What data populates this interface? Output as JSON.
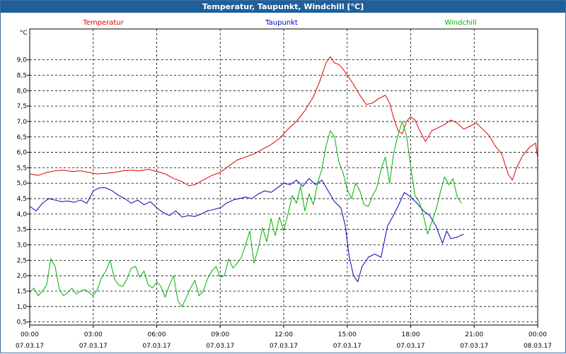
{
  "window": {
    "title": "Temperatur, Taupunkt, Windchill [°C]"
  },
  "chart_data": {
    "type": "line",
    "title": "Temperatur, Taupunkt, Windchill [°C]",
    "ylabel": "°C",
    "xlabel": "",
    "ylim": [
      0.4,
      10.0
    ],
    "xlim": [
      0,
      24
    ],
    "x_unit": "hours since 07.03.17 00:00",
    "y_ticks": [
      "0,5",
      "1,0",
      "1,5",
      "2,0",
      "2,5",
      "3,0",
      "3,5",
      "4,0",
      "4,5",
      "5,0",
      "5,5",
      "6,0",
      "6,5",
      "7,0",
      "7,5",
      "8,0",
      "8,5",
      "9,0"
    ],
    "x_ticks": [
      {
        "time": "00:00",
        "date": "07.03.17"
      },
      {
        "time": "03:00",
        "date": "07.03.17"
      },
      {
        "time": "06:00",
        "date": "07.03.17"
      },
      {
        "time": "09:00",
        "date": "07.03.17"
      },
      {
        "time": "12:00",
        "date": "07.03.17"
      },
      {
        "time": "15:00",
        "date": "07.03.17"
      },
      {
        "time": "18:00",
        "date": "07.03.17"
      },
      {
        "time": "21:00",
        "date": "07.03.17"
      },
      {
        "time": "00:00",
        "date": "08.03.17"
      }
    ],
    "grid": true,
    "series": [
      {
        "name": "Temperatur",
        "color": "#e00000",
        "points": [
          [
            0,
            5.3
          ],
          [
            0.4,
            5.25
          ],
          [
            0.8,
            5.35
          ],
          [
            1.2,
            5.4
          ],
          [
            1.6,
            5.42
          ],
          [
            2.0,
            5.38
          ],
          [
            2.4,
            5.4
          ],
          [
            2.8,
            5.35
          ],
          [
            3.2,
            5.3
          ],
          [
            3.6,
            5.32
          ],
          [
            4.0,
            5.35
          ],
          [
            4.4,
            5.4
          ],
          [
            4.8,
            5.42
          ],
          [
            5.2,
            5.4
          ],
          [
            5.6,
            5.45
          ],
          [
            6.0,
            5.38
          ],
          [
            6.4,
            5.3
          ],
          [
            6.8,
            5.15
          ],
          [
            7.2,
            5.05
          ],
          [
            7.5,
            4.92
          ],
          [
            7.8,
            4.95
          ],
          [
            8.2,
            5.1
          ],
          [
            8.6,
            5.25
          ],
          [
            9.0,
            5.35
          ],
          [
            9.4,
            5.55
          ],
          [
            9.8,
            5.75
          ],
          [
            10.2,
            5.85
          ],
          [
            10.6,
            5.95
          ],
          [
            11.0,
            6.1
          ],
          [
            11.4,
            6.25
          ],
          [
            11.8,
            6.45
          ],
          [
            12.2,
            6.75
          ],
          [
            12.6,
            7.0
          ],
          [
            13.0,
            7.35
          ],
          [
            13.4,
            7.8
          ],
          [
            13.7,
            8.3
          ],
          [
            14.0,
            8.9
          ],
          [
            14.2,
            9.1
          ],
          [
            14.4,
            8.9
          ],
          [
            14.6,
            8.85
          ],
          [
            14.8,
            8.7
          ],
          [
            15.0,
            8.5
          ],
          [
            15.3,
            8.2
          ],
          [
            15.6,
            7.85
          ],
          [
            15.9,
            7.55
          ],
          [
            16.2,
            7.6
          ],
          [
            16.5,
            7.75
          ],
          [
            16.8,
            7.85
          ],
          [
            17.0,
            7.6
          ],
          [
            17.2,
            7.1
          ],
          [
            17.4,
            6.7
          ],
          [
            17.6,
            6.6
          ],
          [
            17.8,
            7.0
          ],
          [
            18.0,
            7.15
          ],
          [
            18.2,
            7.05
          ],
          [
            18.5,
            6.6
          ],
          [
            18.7,
            6.35
          ],
          [
            19.0,
            6.7
          ],
          [
            19.3,
            6.8
          ],
          [
            19.6,
            6.9
          ],
          [
            19.9,
            7.05
          ],
          [
            20.2,
            6.95
          ],
          [
            20.5,
            6.75
          ],
          [
            20.8,
            6.85
          ],
          [
            21.1,
            6.95
          ],
          [
            21.4,
            6.75
          ],
          [
            21.7,
            6.55
          ],
          [
            22.0,
            6.2
          ],
          [
            22.3,
            5.95
          ],
          [
            22.6,
            5.3
          ],
          [
            22.8,
            5.1
          ],
          [
            23.0,
            5.5
          ],
          [
            23.3,
            5.9
          ],
          [
            23.6,
            6.15
          ],
          [
            23.9,
            6.3
          ],
          [
            24.0,
            5.8
          ]
        ]
      },
      {
        "name": "Taupunkt",
        "color": "#0000c0",
        "points": [
          [
            0,
            4.25
          ],
          [
            0.3,
            4.1
          ],
          [
            0.6,
            4.35
          ],
          [
            0.9,
            4.5
          ],
          [
            1.2,
            4.45
          ],
          [
            1.5,
            4.4
          ],
          [
            1.8,
            4.42
          ],
          [
            2.1,
            4.38
          ],
          [
            2.4,
            4.45
          ],
          [
            2.7,
            4.35
          ],
          [
            3.0,
            4.75
          ],
          [
            3.3,
            4.85
          ],
          [
            3.6,
            4.85
          ],
          [
            3.9,
            4.75
          ],
          [
            4.2,
            4.6
          ],
          [
            4.5,
            4.5
          ],
          [
            4.8,
            4.35
          ],
          [
            5.1,
            4.45
          ],
          [
            5.4,
            4.3
          ],
          [
            5.7,
            4.4
          ],
          [
            6.0,
            4.2
          ],
          [
            6.3,
            4.05
          ],
          [
            6.6,
            3.95
          ],
          [
            6.9,
            4.1
          ],
          [
            7.2,
            3.9
          ],
          [
            7.5,
            3.95
          ],
          [
            7.8,
            3.92
          ],
          [
            8.1,
            4.0
          ],
          [
            8.4,
            4.1
          ],
          [
            8.7,
            4.15
          ],
          [
            9.0,
            4.2
          ],
          [
            9.3,
            4.35
          ],
          [
            9.6,
            4.45
          ],
          [
            9.9,
            4.5
          ],
          [
            10.2,
            4.55
          ],
          [
            10.5,
            4.5
          ],
          [
            10.8,
            4.65
          ],
          [
            11.1,
            4.75
          ],
          [
            11.4,
            4.7
          ],
          [
            11.7,
            4.85
          ],
          [
            12.0,
            5.0
          ],
          [
            12.3,
            4.95
          ],
          [
            12.6,
            5.1
          ],
          [
            12.9,
            4.9
          ],
          [
            13.2,
            5.15
          ],
          [
            13.5,
            4.95
          ],
          [
            13.8,
            5.1
          ],
          [
            14.1,
            4.75
          ],
          [
            14.4,
            4.4
          ],
          [
            14.7,
            4.2
          ],
          [
            14.9,
            3.65
          ],
          [
            15.1,
            2.6
          ],
          [
            15.3,
            2.0
          ],
          [
            15.5,
            1.8
          ],
          [
            15.7,
            2.3
          ],
          [
            16.0,
            2.6
          ],
          [
            16.3,
            2.7
          ],
          [
            16.6,
            2.6
          ],
          [
            16.9,
            3.6
          ],
          [
            17.1,
            3.85
          ],
          [
            17.4,
            4.25
          ],
          [
            17.7,
            4.7
          ],
          [
            18.0,
            4.55
          ],
          [
            18.3,
            4.35
          ],
          [
            18.6,
            4.1
          ],
          [
            18.9,
            3.95
          ],
          [
            19.2,
            3.6
          ],
          [
            19.5,
            3.05
          ],
          [
            19.7,
            3.45
          ],
          [
            19.9,
            3.2
          ],
          [
            20.2,
            3.25
          ],
          [
            20.5,
            3.35
          ]
        ]
      },
      {
        "name": "Windchill",
        "color": "#00b000",
        "points": [
          [
            0,
            1.45
          ],
          [
            0.2,
            1.6
          ],
          [
            0.4,
            1.35
          ],
          [
            0.6,
            1.5
          ],
          [
            0.8,
            1.7
          ],
          [
            1.0,
            2.55
          ],
          [
            1.2,
            2.3
          ],
          [
            1.4,
            1.55
          ],
          [
            1.6,
            1.35
          ],
          [
            1.8,
            1.45
          ],
          [
            2.0,
            1.6
          ],
          [
            2.2,
            1.4
          ],
          [
            2.4,
            1.5
          ],
          [
            2.6,
            1.55
          ],
          [
            2.8,
            1.45
          ],
          [
            3.0,
            1.35
          ],
          [
            3.2,
            1.55
          ],
          [
            3.4,
            1.95
          ],
          [
            3.6,
            2.15
          ],
          [
            3.8,
            2.5
          ],
          [
            4.0,
            1.9
          ],
          [
            4.2,
            1.7
          ],
          [
            4.4,
            1.65
          ],
          [
            4.6,
            1.9
          ],
          [
            4.8,
            2.25
          ],
          [
            5.0,
            2.3
          ],
          [
            5.2,
            1.95
          ],
          [
            5.4,
            2.15
          ],
          [
            5.6,
            1.7
          ],
          [
            5.8,
            1.6
          ],
          [
            6.0,
            1.8
          ],
          [
            6.2,
            1.65
          ],
          [
            6.4,
            1.3
          ],
          [
            6.6,
            1.7
          ],
          [
            6.8,
            2.0
          ],
          [
            7.0,
            1.2
          ],
          [
            7.2,
            1.0
          ],
          [
            7.4,
            1.3
          ],
          [
            7.6,
            1.6
          ],
          [
            7.8,
            1.85
          ],
          [
            8.0,
            1.35
          ],
          [
            8.2,
            1.5
          ],
          [
            8.4,
            1.9
          ],
          [
            8.6,
            2.15
          ],
          [
            8.8,
            2.3
          ],
          [
            9.0,
            1.95
          ],
          [
            9.2,
            2.0
          ],
          [
            9.4,
            2.55
          ],
          [
            9.6,
            2.25
          ],
          [
            9.8,
            2.4
          ],
          [
            10.0,
            2.6
          ],
          [
            10.2,
            3.0
          ],
          [
            10.4,
            3.45
          ],
          [
            10.6,
            2.4
          ],
          [
            10.8,
            2.9
          ],
          [
            11.0,
            3.55
          ],
          [
            11.2,
            3.1
          ],
          [
            11.4,
            3.85
          ],
          [
            11.6,
            3.3
          ],
          [
            11.8,
            3.9
          ],
          [
            12.0,
            3.45
          ],
          [
            12.2,
            4.0
          ],
          [
            12.4,
            4.6
          ],
          [
            12.6,
            4.35
          ],
          [
            12.8,
            4.9
          ],
          [
            13.0,
            4.1
          ],
          [
            13.2,
            4.65
          ],
          [
            13.4,
            4.3
          ],
          [
            13.6,
            5.0
          ],
          [
            13.8,
            5.45
          ],
          [
            14.0,
            6.2
          ],
          [
            14.2,
            6.7
          ],
          [
            14.4,
            6.5
          ],
          [
            14.6,
            5.7
          ],
          [
            14.8,
            5.35
          ],
          [
            15.0,
            4.8
          ],
          [
            15.2,
            4.5
          ],
          [
            15.4,
            5.0
          ],
          [
            15.6,
            4.75
          ],
          [
            15.8,
            4.3
          ],
          [
            16.0,
            4.25
          ],
          [
            16.2,
            4.6
          ],
          [
            16.4,
            4.85
          ],
          [
            16.6,
            5.45
          ],
          [
            16.8,
            5.85
          ],
          [
            17.0,
            5.0
          ],
          [
            17.2,
            6.0
          ],
          [
            17.4,
            6.55
          ],
          [
            17.6,
            7.0
          ],
          [
            17.8,
            6.55
          ],
          [
            18.0,
            5.55
          ],
          [
            18.2,
            4.6
          ],
          [
            18.4,
            4.4
          ],
          [
            18.6,
            3.95
          ],
          [
            18.8,
            3.35
          ],
          [
            19.0,
            3.75
          ],
          [
            19.2,
            4.15
          ],
          [
            19.4,
            4.7
          ],
          [
            19.6,
            5.2
          ],
          [
            19.8,
            4.95
          ],
          [
            20.0,
            5.15
          ],
          [
            20.2,
            4.55
          ],
          [
            20.4,
            4.35
          ]
        ]
      }
    ]
  }
}
